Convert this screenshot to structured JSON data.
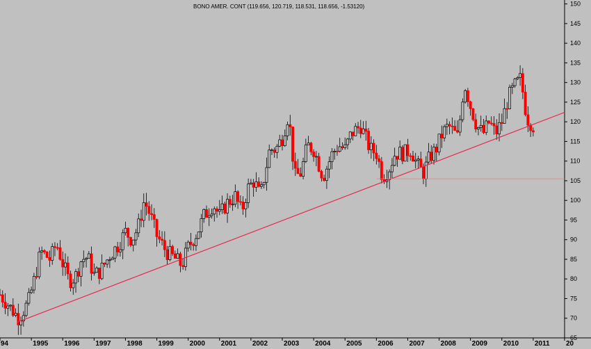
{
  "chart_data": {
    "type": "candlestick",
    "title": "BONO AMER. CONT (119.656, 120.719, 118.531, 118.656, -1.53120)",
    "xlabel": "",
    "ylabel": "",
    "ylim": [
      65,
      151
    ],
    "y_ticks": [
      65,
      70,
      75,
      80,
      85,
      90,
      95,
      100,
      105,
      110,
      115,
      120,
      125,
      130,
      135,
      140,
      145,
      150
    ],
    "x_ticks": [
      "94",
      "1995",
      "1996",
      "1997",
      "1998",
      "1999",
      "2000",
      "2001",
      "2002",
      "2003",
      "2004",
      "2005",
      "2006",
      "2007",
      "2008",
      "2009",
      "2010",
      "2011",
      "20"
    ],
    "x_range": [
      1994.0,
      2012.0
    ],
    "grid": false,
    "up_color": "#c0c0c0",
    "down_color": "#ff0000",
    "wick_color": "#000000",
    "trendline": {
      "color": "#e8264c",
      "points": [
        [
          1994.55,
          69.0
        ],
        [
          2012.0,
          122.4
        ]
      ]
    },
    "support_line": {
      "color": "#f07a7a",
      "points": [
        [
          2006.0,
          105.5
        ],
        [
          2012.0,
          105.5
        ]
      ]
    },
    "closes": [
      [
        1994.0,
        76.0
      ],
      [
        1994.6,
        70.0
      ],
      [
        1994.9,
        74.0
      ],
      [
        1995.1,
        80.0
      ],
      [
        1995.3,
        87.0
      ],
      [
        1995.6,
        85.0
      ],
      [
        1995.8,
        89.0
      ],
      [
        1996.0,
        84.0
      ],
      [
        1996.2,
        79.5
      ],
      [
        1996.4,
        80.5
      ],
      [
        1996.6,
        85.0
      ],
      [
        1996.8,
        85.5
      ],
      [
        1997.0,
        81.0
      ],
      [
        1997.2,
        82.0
      ],
      [
        1997.5,
        86.0
      ],
      [
        1997.8,
        89.0
      ],
      [
        1998.0,
        92.0
      ],
      [
        1998.2,
        90.0
      ],
      [
        1998.4,
        93.0
      ],
      [
        1998.6,
        100.0
      ],
      [
        1998.8,
        96.0
      ],
      [
        1999.0,
        91.0
      ],
      [
        1999.3,
        87.0
      ],
      [
        1999.6,
        85.0
      ],
      [
        1999.8,
        83.5
      ],
      [
        2000.0,
        88.0
      ],
      [
        2000.3,
        92.0
      ],
      [
        2000.5,
        96.0
      ],
      [
        2000.8,
        99.0
      ],
      [
        2001.0,
        96.0
      ],
      [
        2001.2,
        99.0
      ],
      [
        2001.5,
        101.0
      ],
      [
        2001.7,
        97.0
      ],
      [
        2001.9,
        103.0
      ],
      [
        2002.1,
        105.0
      ],
      [
        2002.3,
        101.0
      ],
      [
        2002.6,
        113.0
      ],
      [
        2002.8,
        113.0
      ],
      [
        2003.0,
        116.0
      ],
      [
        2003.2,
        122.0
      ],
      [
        2003.4,
        106.0
      ],
      [
        2003.6,
        107.0
      ],
      [
        2003.8,
        114.0
      ],
      [
        2004.0,
        113.0
      ],
      [
        2004.3,
        106.0
      ],
      [
        2004.6,
        112.0
      ],
      [
        2004.8,
        114.0
      ],
      [
        2005.0,
        113.0
      ],
      [
        2005.2,
        117.0
      ],
      [
        2005.5,
        119.0
      ],
      [
        2005.8,
        113.0
      ],
      [
        2006.0,
        112.0
      ],
      [
        2006.2,
        106.0
      ],
      [
        2006.4,
        108.0
      ],
      [
        2006.6,
        112.0
      ],
      [
        2006.9,
        112.0
      ],
      [
        2007.1,
        113.0
      ],
      [
        2007.3,
        109.0
      ],
      [
        2007.5,
        107.0
      ],
      [
        2007.7,
        111.0
      ],
      [
        2007.9,
        113.0
      ],
      [
        2008.1,
        117.0
      ],
      [
        2008.3,
        119.0
      ],
      [
        2008.6,
        116.0
      ],
      [
        2008.8,
        130.0
      ],
      [
        2009.0,
        124.0
      ],
      [
        2009.2,
        119.0
      ],
      [
        2009.4,
        117.0
      ],
      [
        2009.6,
        120.0
      ],
      [
        2009.8,
        117.0
      ],
      [
        2010.0,
        120.0
      ],
      [
        2010.2,
        126.0
      ],
      [
        2010.4,
        129.0
      ],
      [
        2010.6,
        131.0
      ],
      [
        2010.8,
        121.0
      ],
      [
        2011.0,
        119.0
      ]
    ]
  }
}
